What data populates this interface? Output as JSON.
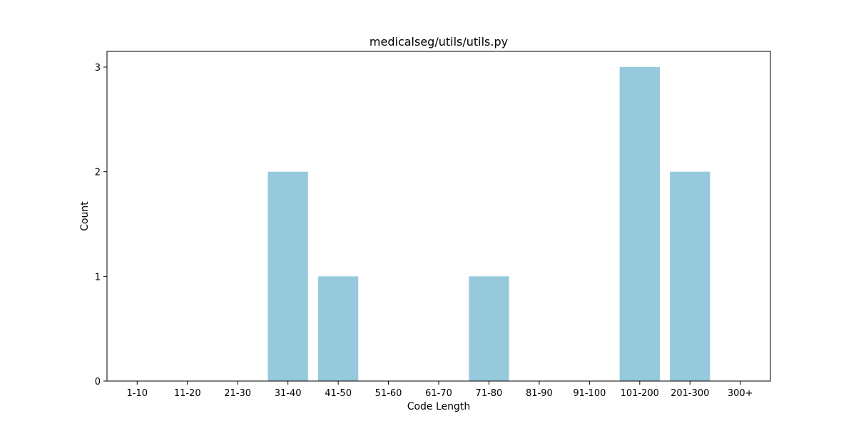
{
  "chart_data": {
    "type": "bar",
    "title": "medicalseg/utils/utils.py",
    "xlabel": "Code Length",
    "ylabel": "Count",
    "categories": [
      "1-10",
      "11-20",
      "21-30",
      "31-40",
      "41-50",
      "51-60",
      "61-70",
      "71-80",
      "81-90",
      "91-100",
      "101-200",
      "201-300",
      "300+"
    ],
    "values": [
      0,
      0,
      0,
      2,
      1,
      0,
      0,
      1,
      0,
      0,
      3,
      2,
      0
    ],
    "ylim": [
      0,
      3.15
    ],
    "yticks": [
      0,
      1,
      2,
      3
    ],
    "bar_color": "#96c9dc",
    "grid": false,
    "legend": "none"
  }
}
